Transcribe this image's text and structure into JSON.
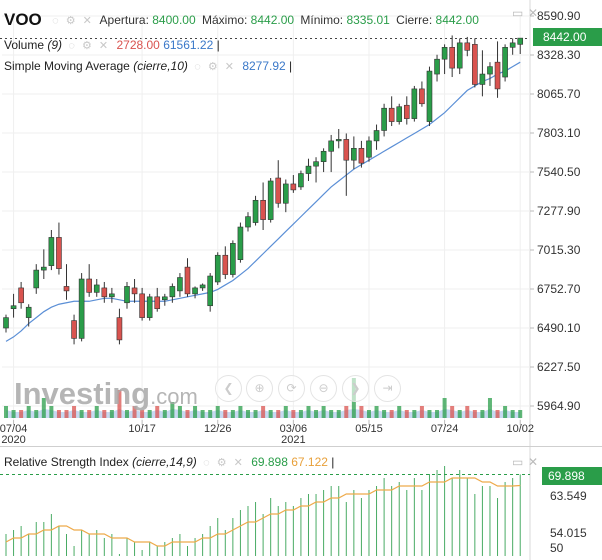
{
  "header": {
    "symbol": "VOO",
    "open_label": "Apertura:",
    "open": "8400.00",
    "high_label": "Máximo:",
    "high": "8442.00",
    "low_label": "Mínimo:",
    "low": "8335.01",
    "close_label": "Cierre:",
    "close": "8442.00"
  },
  "indicators": {
    "volume_name": "Volume",
    "volume_param": "(9)",
    "volume_value_1": "2728.00",
    "volume_value_2": "61561.22",
    "sma_name": "Simple Moving Average",
    "sma_param": "(cierre,10)",
    "sma_value": "8277.92"
  },
  "price_tag": "8442.00",
  "watermark": {
    "brand": "Investing",
    "suffix": ".com"
  },
  "rsi": {
    "name": "Relative Strength Index",
    "param": "(cierre,14,9)",
    "value_1": "69.898",
    "value_2": "67.122",
    "tag": "69.898",
    "axis_ticks": [
      "63.549",
      "54.015",
      "50"
    ]
  },
  "colors": {
    "up": "#2a9d49",
    "down": "#d9534f",
    "sma": "#5b8fd6",
    "rsi_signal": "#eeaa4a",
    "volume_area": "#b9d0ee"
  },
  "chart_data": {
    "type": "candlestick",
    "symbol": "VOO",
    "y_ticks": [
      8590.9,
      8328.3,
      8065.7,
      7803.1,
      7540.5,
      7277.9,
      7015.3,
      6752.7,
      6490.1,
      6227.5,
      5964.9
    ],
    "y_tick_labels": [
      "8590.90",
      "8328.30",
      "8065.70",
      "7803.10",
      "7540.50",
      "7277.90",
      "7015.30",
      "6752.70",
      "6490.10",
      "6227.50",
      "5964.90"
    ],
    "ylim": [
      5870,
      8640
    ],
    "x_tick_labels": [
      {
        "label": "07/04",
        "sub": "2020",
        "index": 1
      },
      {
        "label": "10/17",
        "sub": "",
        "index": 18
      },
      {
        "label": "12/26",
        "sub": "",
        "index": 28
      },
      {
        "label": "03/06",
        "sub": "2021",
        "index": 38
      },
      {
        "label": "05/15",
        "sub": "",
        "index": 48
      },
      {
        "label": "07/24",
        "sub": "",
        "index": 58
      },
      {
        "label": "10/02",
        "sub": "",
        "index": 68
      }
    ],
    "candles": [
      {
        "o": 6490,
        "h": 6580,
        "l": 6460,
        "c": 6560
      },
      {
        "o": 6620,
        "h": 6720,
        "l": 6560,
        "c": 6640
      },
      {
        "o": 6760,
        "h": 6800,
        "l": 6620,
        "c": 6660
      },
      {
        "o": 6560,
        "h": 6650,
        "l": 6500,
        "c": 6630
      },
      {
        "o": 6760,
        "h": 6920,
        "l": 6720,
        "c": 6880
      },
      {
        "o": 6880,
        "h": 7020,
        "l": 6820,
        "c": 6900
      },
      {
        "o": 6910,
        "h": 7150,
        "l": 6880,
        "c": 7100
      },
      {
        "o": 7100,
        "h": 7200,
        "l": 6850,
        "c": 6890
      },
      {
        "o": 6770,
        "h": 6920,
        "l": 6680,
        "c": 6740
      },
      {
        "o": 6540,
        "h": 6580,
        "l": 6380,
        "c": 6420
      },
      {
        "o": 6420,
        "h": 6860,
        "l": 6400,
        "c": 6820
      },
      {
        "o": 6820,
        "h": 6920,
        "l": 6700,
        "c": 6730
      },
      {
        "o": 6730,
        "h": 6820,
        "l": 6700,
        "c": 6780
      },
      {
        "o": 6760,
        "h": 6800,
        "l": 6660,
        "c": 6700
      },
      {
        "o": 6700,
        "h": 6760,
        "l": 6660,
        "c": 6720
      },
      {
        "o": 6560,
        "h": 6620,
        "l": 6380,
        "c": 6410
      },
      {
        "o": 6660,
        "h": 6800,
        "l": 6620,
        "c": 6770
      },
      {
        "o": 6760,
        "h": 6820,
        "l": 6660,
        "c": 6720
      },
      {
        "o": 6720,
        "h": 6760,
        "l": 6540,
        "c": 6560
      },
      {
        "o": 6560,
        "h": 6720,
        "l": 6540,
        "c": 6700
      },
      {
        "o": 6700,
        "h": 6760,
        "l": 6600,
        "c": 6620
      },
      {
        "o": 6680,
        "h": 6720,
        "l": 6640,
        "c": 6700
      },
      {
        "o": 6700,
        "h": 6790,
        "l": 6660,
        "c": 6770
      },
      {
        "o": 6740,
        "h": 6860,
        "l": 6700,
        "c": 6830
      },
      {
        "o": 6900,
        "h": 6960,
        "l": 6700,
        "c": 6720
      },
      {
        "o": 6720,
        "h": 6770,
        "l": 6690,
        "c": 6760
      },
      {
        "o": 6760,
        "h": 6790,
        "l": 6740,
        "c": 6780
      },
      {
        "o": 6640,
        "h": 6860,
        "l": 6600,
        "c": 6840
      },
      {
        "o": 6800,
        "h": 7000,
        "l": 6780,
        "c": 6980
      },
      {
        "o": 6980,
        "h": 7040,
        "l": 6820,
        "c": 6850
      },
      {
        "o": 6850,
        "h": 7080,
        "l": 6830,
        "c": 7060
      },
      {
        "o": 6950,
        "h": 7200,
        "l": 6930,
        "c": 7170
      },
      {
        "o": 7170,
        "h": 7270,
        "l": 7140,
        "c": 7240
      },
      {
        "o": 7200,
        "h": 7380,
        "l": 7180,
        "c": 7350
      },
      {
        "o": 7350,
        "h": 7470,
        "l": 7150,
        "c": 7220
      },
      {
        "o": 7220,
        "h": 7500,
        "l": 7200,
        "c": 7480
      },
      {
        "o": 7500,
        "h": 7620,
        "l": 7300,
        "c": 7330
      },
      {
        "o": 7330,
        "h": 7490,
        "l": 7270,
        "c": 7460
      },
      {
        "o": 7460,
        "h": 7520,
        "l": 7400,
        "c": 7420
      },
      {
        "o": 7440,
        "h": 7550,
        "l": 7420,
        "c": 7530
      },
      {
        "o": 7530,
        "h": 7630,
        "l": 7480,
        "c": 7580
      },
      {
        "o": 7580,
        "h": 7640,
        "l": 7470,
        "c": 7610
      },
      {
        "o": 7610,
        "h": 7700,
        "l": 7540,
        "c": 7680
      },
      {
        "o": 7680,
        "h": 7790,
        "l": 7540,
        "c": 7750
      },
      {
        "o": 7750,
        "h": 7830,
        "l": 7700,
        "c": 7760
      },
      {
        "o": 7760,
        "h": 7800,
        "l": 7380,
        "c": 7620
      },
      {
        "o": 7620,
        "h": 7780,
        "l": 7560,
        "c": 7700
      },
      {
        "o": 7700,
        "h": 7750,
        "l": 7570,
        "c": 7600
      },
      {
        "o": 7640,
        "h": 7780,
        "l": 7610,
        "c": 7750
      },
      {
        "o": 7750,
        "h": 7860,
        "l": 7690,
        "c": 7820
      },
      {
        "o": 7820,
        "h": 8000,
        "l": 7780,
        "c": 7970
      },
      {
        "o": 7970,
        "h": 8050,
        "l": 7850,
        "c": 7880
      },
      {
        "o": 7880,
        "h": 8000,
        "l": 7860,
        "c": 7980
      },
      {
        "o": 7990,
        "h": 8050,
        "l": 7860,
        "c": 7900
      },
      {
        "o": 7900,
        "h": 8120,
        "l": 7880,
        "c": 8100
      },
      {
        "o": 8100,
        "h": 8150,
        "l": 7980,
        "c": 8000
      },
      {
        "o": 7880,
        "h": 8250,
        "l": 7850,
        "c": 8220
      },
      {
        "o": 8200,
        "h": 8330,
        "l": 8150,
        "c": 8300
      },
      {
        "o": 8300,
        "h": 8400,
        "l": 8200,
        "c": 8380
      },
      {
        "o": 8380,
        "h": 8460,
        "l": 8180,
        "c": 8240
      },
      {
        "o": 8240,
        "h": 8440,
        "l": 8200,
        "c": 8410
      },
      {
        "o": 8410,
        "h": 8450,
        "l": 8320,
        "c": 8360
      },
      {
        "o": 8400,
        "h": 8440,
        "l": 8110,
        "c": 8130
      },
      {
        "o": 8130,
        "h": 8360,
        "l": 8050,
        "c": 8200
      },
      {
        "o": 8200,
        "h": 8280,
        "l": 8120,
        "c": 8250
      },
      {
        "o": 8280,
        "h": 8420,
        "l": 8040,
        "c": 8100
      },
      {
        "o": 8180,
        "h": 8400,
        "l": 8150,
        "c": 8380
      },
      {
        "o": 8380,
        "h": 8440,
        "l": 8330,
        "c": 8410
      },
      {
        "o": 8400,
        "h": 8442,
        "l": 8335.01,
        "c": 8442
      }
    ],
    "sma": [
      6400,
      6430,
      6470,
      6520,
      6560,
      6600,
      6630,
      6650,
      6660,
      6670,
      6670,
      6670,
      6680,
      6690,
      6690,
      6680,
      6670,
      6670,
      6670,
      6670,
      6670,
      6670,
      6680,
      6690,
      6700,
      6710,
      6720,
      6730,
      6750,
      6780,
      6810,
      6850,
      6890,
      6940,
      6990,
      7040,
      7090,
      7140,
      7190,
      7240,
      7290,
      7340,
      7390,
      7440,
      7480,
      7520,
      7560,
      7590,
      7620,
      7650,
      7680,
      7710,
      7740,
      7770,
      7800,
      7830,
      7860,
      7900,
      7940,
      7990,
      8040,
      8090,
      8120,
      8150,
      8170,
      8200,
      8220,
      8250,
      8280
    ],
    "volume": [
      0.3,
      0.2,
      0.2,
      0.3,
      0.2,
      0.5,
      0.3,
      0.2,
      0.2,
      0.3,
      0.2,
      0.2,
      0.3,
      0.2,
      0.2,
      0.7,
      0.2,
      0.3,
      0.2,
      0.2,
      0.3,
      0.2,
      0.4,
      0.3,
      0.2,
      0.3,
      0.2,
      0.2,
      0.3,
      0.2,
      0.2,
      0.3,
      0.2,
      0.2,
      0.3,
      0.2,
      0.2,
      0.3,
      0.2,
      0.2,
      0.3,
      0.2,
      0.3,
      0.2,
      0.2,
      0.3,
      1.0,
      0.3,
      0.2,
      0.3,
      0.2,
      0.2,
      0.3,
      0.2,
      0.2,
      0.3,
      0.2,
      0.2,
      0.5,
      0.3,
      0.2,
      0.3,
      0.2,
      0.2,
      0.5,
      0.2,
      0.3,
      0.2,
      0.2
    ],
    "rsi": [
      55,
      56,
      57,
      55,
      58,
      58,
      60,
      57,
      55,
      52,
      56,
      55,
      56,
      54,
      55,
      50,
      54,
      53,
      51,
      53,
      52,
      53,
      54,
      55,
      52,
      54,
      55,
      57,
      59,
      56,
      59,
      61,
      62,
      63,
      60,
      64,
      62,
      63,
      62,
      64,
      65,
      65,
      66,
      67,
      67,
      63,
      66,
      64,
      66,
      67,
      69,
      67,
      68,
      66,
      69,
      66,
      70,
      71,
      72,
      69,
      71,
      69,
      65,
      67,
      67,
      64,
      68,
      69,
      69.898
    ],
    "rsi_signal": [
      53,
      54,
      54,
      55,
      55,
      56,
      56,
      57,
      57,
      56,
      56,
      55,
      55,
      55,
      54,
      54,
      54,
      53,
      53,
      53,
      52,
      52,
      53,
      53,
      53,
      53,
      54,
      54,
      55,
      55,
      56,
      57,
      58,
      58,
      59,
      60,
      60,
      61,
      61,
      62,
      62,
      63,
      63,
      64,
      64,
      65,
      65,
      65,
      65,
      66,
      66,
      66,
      67,
      67,
      67,
      67,
      68,
      68,
      68,
      69,
      69,
      69,
      69,
      68,
      68,
      67,
      67,
      67,
      67.122
    ],
    "rsi_ylim": [
      50,
      70
    ]
  }
}
